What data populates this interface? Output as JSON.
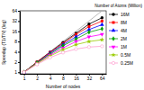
{
  "chart_data": {
    "type": "line",
    "title": "Number of Atoms (Million)",
    "x_label": "Number of nodes",
    "y_label": "Speedup (T1/TN) (log)",
    "log": true,
    "legend": "right",
    "x": [
      1,
      2,
      4,
      8,
      16,
      32,
      64
    ],
    "xlim": [
      0.8,
      80
    ],
    "xticks": [
      1,
      2,
      4,
      8,
      16,
      32,
      64
    ],
    "ylim": [
      0.9,
      64
    ],
    "yticks": [
      1,
      2,
      4,
      8,
      16,
      32,
      64
    ],
    "series": [
      {
        "color": "#aaaaaa",
        "line_style": "solid",
        "values": [
          1,
          2,
          4,
          8,
          16,
          32,
          64
        ]
      },
      {
        "name": "16M",
        "color": "#000000",
        "marker": "circle",
        "values": [
          1,
          2,
          3.9,
          7.5,
          14,
          26,
          40
        ]
      },
      {
        "name": "8M",
        "color": "#ff0000",
        "marker": "square",
        "values": [
          1,
          2,
          3.8,
          7,
          13,
          22,
          32
        ]
      },
      {
        "name": "4M",
        "color": "#0000ff",
        "marker": "triangle",
        "values": [
          1,
          1.9,
          3.6,
          6.5,
          11,
          18,
          25
        ]
      },
      {
        "name": "2M",
        "color": "#00a000",
        "marker": "diamond",
        "values": [
          1,
          1.9,
          3.4,
          6,
          9.5,
          15,
          19
        ]
      },
      {
        "name": "1M",
        "color": "#ff00ff",
        "marker": "triangle-down",
        "values": [
          1,
          1.8,
          3.2,
          5.2,
          8,
          11,
          13
        ]
      },
      {
        "name": "0.5M",
        "color": "#99cc00",
        "marker": "star",
        "values": [
          1,
          1.8,
          3,
          4.6,
          6.5,
          8,
          9
        ]
      },
      {
        "name": "0.25M",
        "color": "#ff99cc",
        "marker": "circle-open",
        "values": [
          1,
          1.7,
          2.7,
          3.8,
          4.8,
          5.5,
          5.8
        ]
      }
    ]
  }
}
